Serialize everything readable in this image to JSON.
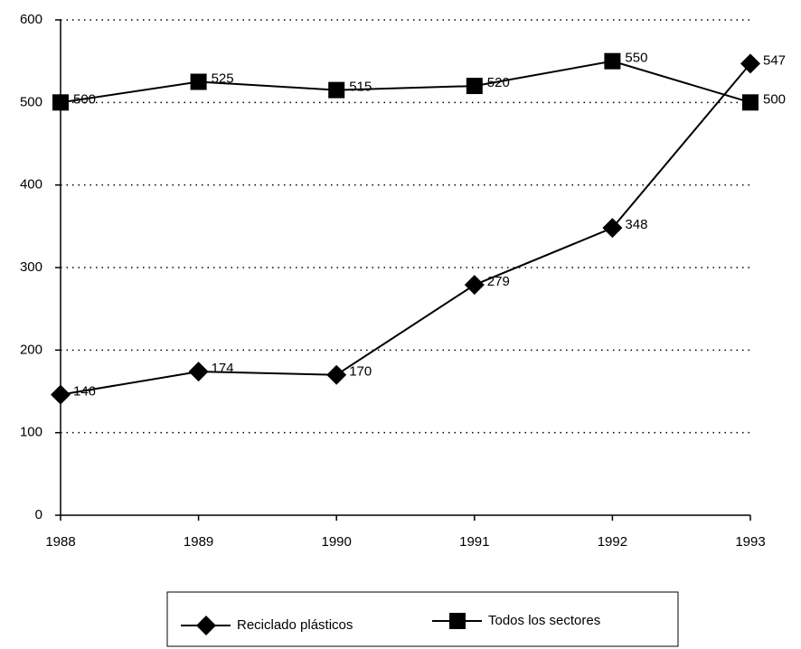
{
  "chart_data": {
    "type": "line",
    "categories": [
      "1988",
      "1989",
      "1990",
      "1991",
      "1992",
      "1993"
    ],
    "series": [
      {
        "name": "Reciclado plásticos",
        "color": "#000000",
        "marker": "diamond",
        "values": [
          146,
          174,
          170,
          279,
          348,
          547
        ]
      },
      {
        "name": "Todos los sectores",
        "color": "#000000",
        "marker": "square",
        "values": [
          500,
          525,
          515,
          520,
          550,
          500
        ]
      }
    ],
    "ylim": [
      0,
      600
    ],
    "yticks": [
      0,
      100,
      200,
      300,
      400,
      500,
      600
    ],
    "grid": true,
    "legend": "bottom"
  }
}
